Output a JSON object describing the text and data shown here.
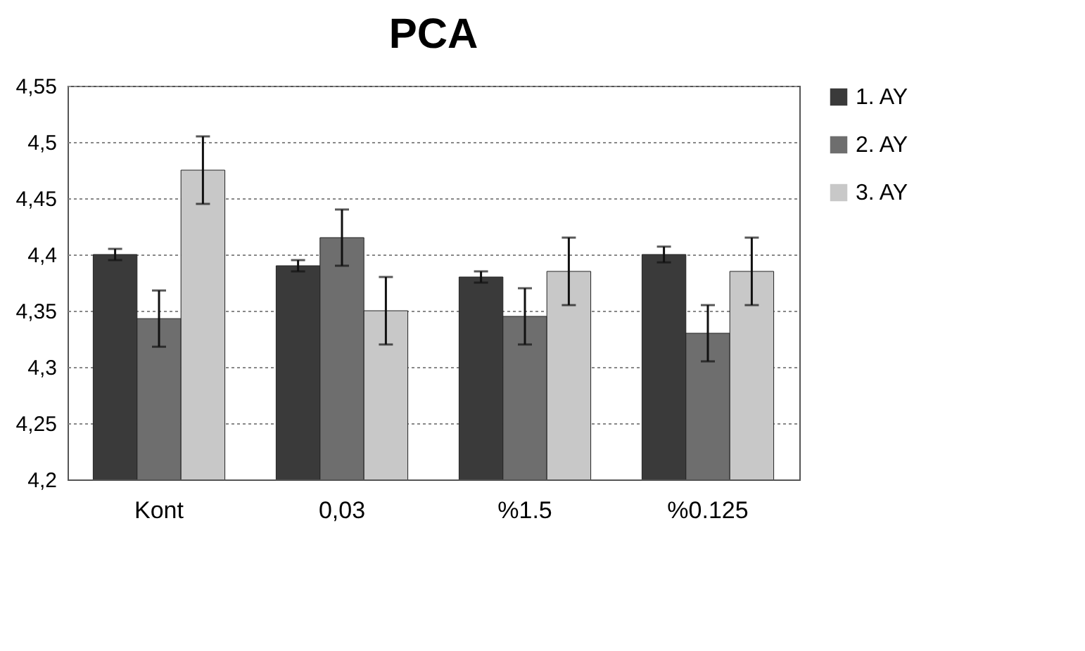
{
  "chart_data": {
    "type": "bar",
    "title": "PCA",
    "categories": [
      "Kont",
      "0,03",
      "%1.5",
      "%0.125"
    ],
    "series": [
      {
        "name": "1. AY",
        "color": "#3a3a3a",
        "values": [
          4.4,
          4.39,
          4.38,
          4.4
        ],
        "errors": [
          0.005,
          0.005,
          0.005,
          0.007
        ]
      },
      {
        "name": "2. AY",
        "color": "#6e6e6e",
        "values": [
          4.343,
          4.415,
          4.345,
          4.33
        ],
        "errors": [
          0.025,
          0.025,
          0.025,
          0.025
        ]
      },
      {
        "name": "3. AY",
        "color": "#c8c8c8",
        "values": [
          4.475,
          4.35,
          4.385,
          4.385
        ],
        "errors": [
          0.03,
          0.03,
          0.03,
          0.03
        ]
      }
    ],
    "ylim": [
      4.2,
      4.55
    ],
    "yticks": [
      {
        "value": 4.2,
        "label": "4,2"
      },
      {
        "value": 4.25,
        "label": "4,25"
      },
      {
        "value": 4.3,
        "label": "4,3"
      },
      {
        "value": 4.35,
        "label": "4,35"
      },
      {
        "value": 4.4,
        "label": "4,4"
      },
      {
        "value": 4.45,
        "label": "4,45"
      },
      {
        "value": 4.5,
        "label": "4,5"
      },
      {
        "value": 4.55,
        "label": "4,55"
      }
    ],
    "grid": "y",
    "legend": "right"
  }
}
